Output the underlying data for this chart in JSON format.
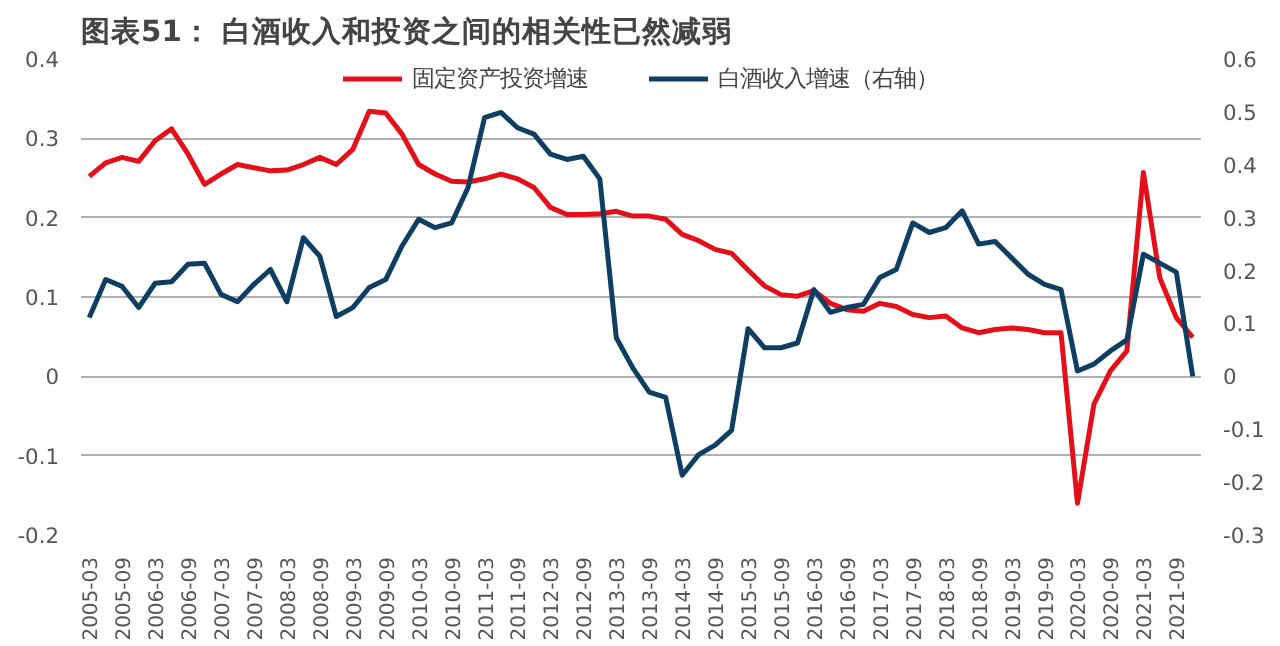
{
  "chart_data": {
    "type": "line",
    "title": "图表51：  白酒收入和投资之间的相关性已然减弱",
    "categories": [
      "2005-03",
      null,
      "2005-09",
      null,
      "2006-03",
      null,
      "2006-09",
      null,
      "2007-03",
      null,
      "2007-09",
      null,
      "2008-03",
      null,
      "2008-09",
      null,
      "2009-03",
      null,
      "2009-09",
      null,
      "2010-03",
      null,
      "2010-09",
      null,
      "2011-03",
      null,
      "2011-09",
      null,
      "2012-03",
      null,
      "2012-09",
      null,
      "2013-03",
      null,
      "2013-09",
      null,
      "2014-03",
      null,
      "2014-09",
      null,
      "2015-03",
      null,
      "2015-09",
      null,
      "2016-03",
      null,
      "2016-09",
      null,
      "2017-03",
      null,
      "2017-09",
      null,
      "2018-03",
      null,
      "2018-09",
      null,
      "2019-03",
      null,
      "2019-09",
      null,
      "2020-03",
      null,
      "2020-09",
      null,
      "2021-03",
      null,
      "2021-09",
      null
    ],
    "series": [
      {
        "name": "固定资产投资增速",
        "color": "#e3101a",
        "values": [
          0.252,
          0.269,
          0.276,
          0.271,
          0.297,
          0.312,
          0.28,
          0.242,
          0.255,
          0.267,
          0.263,
          0.259,
          0.26,
          0.267,
          0.276,
          0.267,
          0.286,
          0.334,
          0.332,
          0.305,
          0.267,
          0.255,
          0.246,
          0.245,
          0.249,
          0.255,
          0.249,
          0.238,
          0.213,
          0.204,
          0.204,
          0.205,
          0.208,
          0.202,
          0.202,
          0.198,
          0.179,
          0.171,
          0.16,
          0.155,
          0.134,
          0.114,
          0.103,
          0.101,
          0.108,
          0.092,
          0.084,
          0.082,
          0.092,
          0.088,
          0.078,
          0.074,
          0.076,
          0.061,
          0.055,
          0.059,
          0.061,
          0.059,
          0.055,
          0.055,
          -0.16,
          -0.035,
          0.007,
          0.032,
          0.257,
          0.124,
          0.074,
          0.049
        ]
      },
      {
        "name": "白酒收入增速（右轴）",
        "color": "#0e3f63",
        "axis": "y2",
        "values": [
          0.111,
          0.183,
          0.17,
          0.13,
          0.176,
          0.179,
          0.212,
          0.214,
          0.155,
          0.141,
          0.174,
          0.202,
          0.141,
          0.262,
          0.227,
          0.113,
          0.13,
          0.168,
          0.183,
          0.247,
          0.297,
          0.281,
          0.29,
          0.357,
          0.489,
          0.499,
          0.47,
          0.458,
          0.42,
          0.41,
          0.416,
          0.373,
          0.073,
          0.016,
          -0.03,
          -0.04,
          -0.187,
          -0.148,
          -0.13,
          -0.102,
          0.09,
          0.054,
          0.054,
          0.063,
          0.164,
          0.121,
          0.13,
          0.136,
          0.187,
          0.202,
          0.29,
          0.272,
          0.281,
          0.313,
          0.25,
          0.255,
          0.224,
          0.193,
          0.174,
          0.164,
          0.01,
          0.023,
          0.048,
          0.069,
          0.231,
          0.214,
          0.197,
          0.0
        ]
      }
    ],
    "ylim": [
      -0.2,
      0.4
    ],
    "yticks": [
      -0.2,
      -0.1,
      0,
      0.1,
      0.2,
      0.3,
      0.4
    ],
    "y2lim": [
      -0.3,
      0.6
    ],
    "y2ticks": [
      -0.3,
      -0.2,
      -0.1,
      0,
      0.1,
      0.2,
      0.3,
      0.4,
      0.5,
      0.6
    ],
    "grid": "y",
    "legend": "top",
    "marker": "none",
    "line_style": "solid"
  }
}
